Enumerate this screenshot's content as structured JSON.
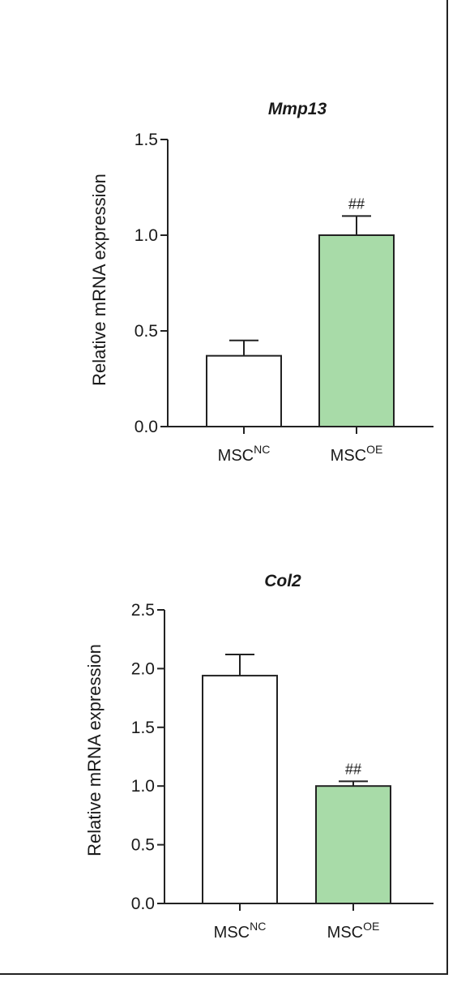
{
  "chart_data": [
    {
      "type": "bar",
      "title": "Mmp13",
      "ylabel": "Relative mRNA expression",
      "xlabel": "",
      "ylim": [
        0,
        1.5
      ],
      "yticks": [
        "0.0",
        "0.5",
        "1.0",
        "1.5"
      ],
      "categories": [
        {
          "base": "MSC",
          "sup": "NC"
        },
        {
          "base": "MSC",
          "sup": "OE"
        }
      ],
      "values": [
        0.37,
        1.0
      ],
      "errors": [
        0.08,
        0.1
      ],
      "annotations": [
        "",
        "##"
      ],
      "bar_colors": [
        "#ffffff",
        "#a8dba8"
      ],
      "grid": false
    },
    {
      "type": "bar",
      "title": "Col2",
      "ylabel": "Relative mRNA expression",
      "xlabel": "",
      "ylim": [
        0,
        2.5
      ],
      "yticks": [
        "0.0",
        "0.5",
        "1.0",
        "1.5",
        "2.0",
        "2.5"
      ],
      "categories": [
        {
          "base": "MSC",
          "sup": "NC"
        },
        {
          "base": "MSC",
          "sup": "OE"
        }
      ],
      "values": [
        1.94,
        1.0
      ],
      "errors": [
        0.18,
        0.04
      ],
      "annotations": [
        "",
        "##"
      ],
      "bar_colors": [
        "#ffffff",
        "#a8dba8"
      ],
      "grid": false
    }
  ]
}
